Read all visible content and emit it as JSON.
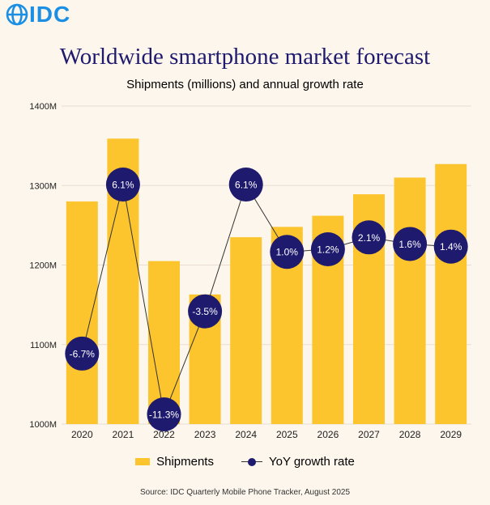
{
  "brand": {
    "logo_text": "IDC",
    "logo_color": "#1a8fe3"
  },
  "colors": {
    "bar": "#fcc42d",
    "point": "#1e1a6e",
    "title": "#1e1a6e",
    "gridline": "#e8ddd0"
  },
  "chart_data": {
    "type": "bar",
    "title": "Worldwide smartphone market forecast",
    "subtitle": "Shipments (millions) and annual growth rate",
    "categories": [
      "2020",
      "2021",
      "2022",
      "2023",
      "2024",
      "2025",
      "2026",
      "2027",
      "2028",
      "2029"
    ],
    "ylim": [
      1000,
      1400
    ],
    "yticks": [
      1000,
      1100,
      1200,
      1300,
      1400
    ],
    "ytick_labels": [
      "1000M",
      "1100M",
      "1200M",
      "1300M",
      "1400M"
    ],
    "grid": true,
    "series": [
      {
        "name": "Shipments",
        "type": "bar",
        "values": [
          1280,
          1359,
          1205,
          1163,
          1235,
          1248,
          1262,
          1289,
          1310,
          1327
        ]
      },
      {
        "name": "YoY growth rate",
        "type": "line",
        "values": [
          -6.7,
          6.1,
          -11.3,
          -3.5,
          6.1,
          1.0,
          1.2,
          2.1,
          1.6,
          1.4
        ],
        "labels": [
          "-6.7%",
          "6.1%",
          "-11.3%",
          "-3.5%",
          "6.1%",
          "1.0%",
          "1.2%",
          "2.1%",
          "1.6%",
          "1.4%"
        ]
      }
    ],
    "legend_position": "bottom"
  },
  "source": "Source:  IDC Quarterly Mobile Phone Tracker, August 2025"
}
